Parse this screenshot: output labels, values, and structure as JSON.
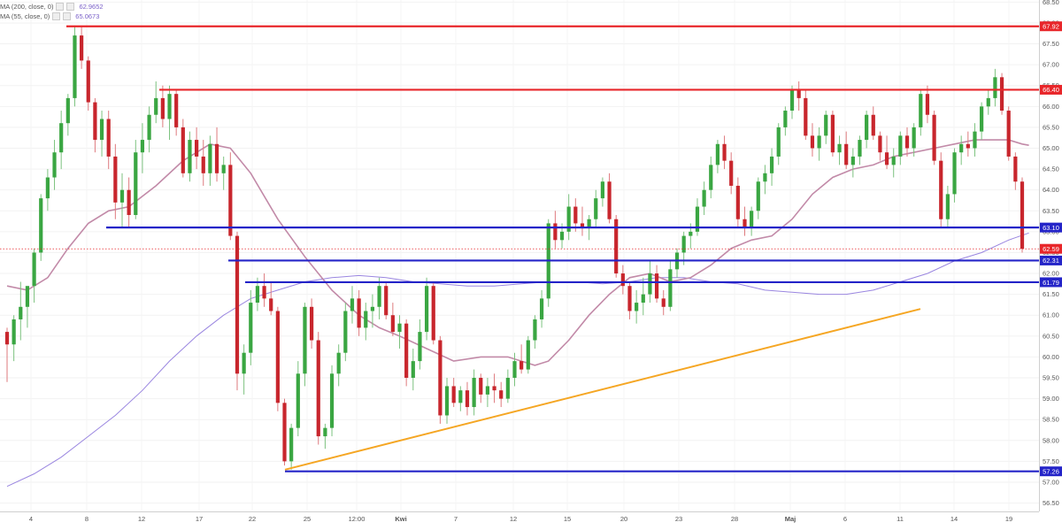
{
  "chart_data": {
    "type": "candlestick",
    "indicators": [
      {
        "label": "MA (200, close, 0)",
        "value": "62.9652",
        "color": "#9a86e0"
      },
      {
        "label": "MA (55, close, 0)",
        "value": "65.0673",
        "color": "#c28aa8"
      }
    ],
    "y_axis": {
      "min": 56.3,
      "max": 68.55,
      "ticks": [
        "56.50",
        "57.00",
        "57.50",
        "58.00",
        "58.50",
        "59.00",
        "59.50",
        "60.00",
        "60.50",
        "61.00",
        "61.50",
        "62.00",
        "62.50",
        "63.00",
        "63.50",
        "64.00",
        "64.50",
        "65.00",
        "65.50",
        "66.00",
        "66.50",
        "67.00",
        "67.50",
        "68.00",
        "68.50"
      ]
    },
    "x_axis": {
      "labels": [
        "4",
        "8",
        "12",
        "17",
        "22",
        "25",
        "12:00",
        "Kwi",
        "7",
        "12",
        "15",
        "20",
        "23",
        "28",
        "Maj",
        "6",
        "11",
        "14",
        "19"
      ]
    },
    "price_levels": [
      {
        "label": "67.92",
        "value": 67.92,
        "color": "#e8262a",
        "kind": "resistance"
      },
      {
        "label": "66.40",
        "value": 66.4,
        "color": "#e8262a",
        "kind": "resistance"
      },
      {
        "label": "63.10",
        "value": 63.1,
        "color": "#2424c8",
        "kind": "support"
      },
      {
        "label": "62.31",
        "value": 62.31,
        "color": "#2424c8",
        "kind": "support"
      },
      {
        "label": "61.79",
        "value": 61.79,
        "color": "#2424c8",
        "kind": "support"
      },
      {
        "label": "57.26",
        "value": 57.26,
        "color": "#2424c8",
        "kind": "support"
      }
    ],
    "last_price": {
      "label": "62.59",
      "value": 62.59,
      "color": "#e8262a"
    },
    "trendline": {
      "start": 57.3,
      "end": 61.15,
      "color": "#f5a623"
    },
    "candles": [
      [
        60.6,
        60.7,
        59.4,
        60.3
      ],
      [
        60.3,
        61.0,
        59.9,
        60.9
      ],
      [
        60.9,
        61.8,
        60.4,
        61.2
      ],
      [
        61.2,
        61.6,
        60.7,
        61.7
      ],
      [
        61.7,
        62.6,
        61.3,
        62.5
      ],
      [
        62.5,
        63.9,
        62.3,
        63.8
      ],
      [
        63.8,
        64.5,
        63.5,
        64.3
      ],
      [
        64.3,
        65.2,
        64.0,
        64.9
      ],
      [
        64.9,
        65.9,
        64.5,
        65.6
      ],
      [
        65.6,
        66.3,
        65.3,
        66.2
      ],
      [
        66.2,
        67.9,
        66.0,
        67.7
      ],
      [
        67.7,
        67.9,
        66.9,
        67.1
      ],
      [
        67.1,
        67.2,
        65.9,
        66.1
      ],
      [
        66.1,
        66.2,
        64.9,
        65.2
      ],
      [
        65.2,
        65.9,
        64.8,
        65.7
      ],
      [
        65.7,
        65.9,
        64.5,
        64.8
      ],
      [
        64.8,
        65.1,
        63.3,
        63.7
      ],
      [
        63.7,
        64.4,
        63.1,
        64.0
      ],
      [
        64.0,
        64.3,
        63.1,
        63.4
      ],
      [
        63.4,
        65.2,
        63.3,
        64.9
      ],
      [
        64.9,
        65.6,
        64.4,
        65.2
      ],
      [
        65.2,
        66.0,
        64.9,
        65.8
      ],
      [
        65.8,
        66.6,
        65.6,
        66.2
      ],
      [
        66.2,
        66.5,
        65.5,
        65.7
      ],
      [
        65.7,
        66.5,
        65.2,
        66.3
      ],
      [
        66.3,
        66.4,
        65.3,
        65.5
      ],
      [
        65.5,
        65.7,
        64.3,
        64.4
      ],
      [
        64.4,
        65.4,
        64.2,
        65.2
      ],
      [
        65.2,
        65.5,
        64.5,
        64.8
      ],
      [
        64.8,
        65.2,
        64.1,
        64.4
      ],
      [
        64.4,
        65.3,
        64.1,
        65.1
      ],
      [
        65.1,
        65.5,
        64.2,
        64.4
      ],
      [
        64.4,
        64.8,
        64.0,
        64.6
      ],
      [
        64.6,
        64.9,
        62.8,
        62.9
      ],
      [
        62.9,
        63.0,
        59.2,
        59.6
      ],
      [
        59.6,
        60.3,
        59.1,
        60.1
      ],
      [
        60.1,
        61.6,
        59.8,
        61.3
      ],
      [
        61.3,
        61.9,
        61.1,
        61.7
      ],
      [
        61.7,
        62.0,
        61.2,
        61.4
      ],
      [
        61.4,
        61.8,
        61.0,
        61.1
      ],
      [
        61.1,
        61.2,
        58.7,
        58.9
      ],
      [
        58.9,
        59.0,
        57.4,
        57.5
      ],
      [
        57.5,
        58.4,
        57.3,
        58.3
      ],
      [
        58.3,
        59.9,
        58.1,
        59.6
      ],
      [
        59.6,
        61.3,
        59.3,
        61.2
      ],
      [
        61.2,
        61.4,
        60.2,
        60.4
      ],
      [
        60.4,
        60.6,
        57.9,
        58.1
      ],
      [
        58.1,
        58.4,
        57.8,
        58.3
      ],
      [
        58.3,
        59.8,
        58.1,
        59.6
      ],
      [
        59.6,
        60.3,
        59.3,
        60.1
      ],
      [
        60.1,
        61.3,
        59.9,
        61.1
      ],
      [
        61.1,
        61.7,
        60.8,
        61.4
      ],
      [
        61.4,
        61.6,
        60.5,
        60.7
      ],
      [
        60.7,
        61.3,
        60.4,
        61.1
      ],
      [
        61.1,
        61.5,
        60.7,
        61.2
      ],
      [
        61.2,
        61.9,
        60.9,
        61.7
      ],
      [
        61.7,
        61.8,
        60.9,
        61.0
      ],
      [
        61.0,
        61.3,
        60.5,
        60.6
      ],
      [
        60.6,
        61.0,
        60.2,
        60.8
      ],
      [
        60.8,
        60.9,
        59.3,
        59.5
      ],
      [
        59.5,
        60.2,
        59.2,
        59.9
      ],
      [
        59.9,
        60.9,
        59.7,
        60.6
      ],
      [
        60.6,
        61.9,
        60.4,
        61.7
      ],
      [
        61.7,
        61.8,
        60.3,
        60.4
      ],
      [
        60.4,
        60.5,
        58.4,
        58.6
      ],
      [
        58.6,
        59.5,
        58.4,
        59.3
      ],
      [
        59.3,
        59.5,
        58.8,
        58.9
      ],
      [
        58.9,
        59.3,
        58.7,
        59.2
      ],
      [
        59.2,
        59.4,
        58.6,
        58.8
      ],
      [
        58.8,
        59.7,
        58.6,
        59.5
      ],
      [
        59.5,
        59.6,
        58.9,
        59.1
      ],
      [
        59.1,
        59.5,
        58.8,
        59.3
      ],
      [
        59.3,
        59.6,
        58.9,
        59.2
      ],
      [
        59.2,
        59.4,
        58.8,
        59.0
      ],
      [
        59.0,
        59.7,
        58.9,
        59.5
      ],
      [
        59.5,
        60.1,
        59.3,
        59.9
      ],
      [
        59.9,
        60.3,
        59.6,
        59.7
      ],
      [
        59.7,
        60.5,
        59.6,
        60.4
      ],
      [
        60.4,
        61.0,
        60.2,
        60.9
      ],
      [
        60.9,
        61.6,
        60.7,
        61.4
      ],
      [
        61.4,
        63.3,
        61.2,
        63.2
      ],
      [
        63.2,
        63.5,
        62.6,
        62.8
      ],
      [
        62.8,
        63.2,
        62.6,
        63.0
      ],
      [
        63.0,
        63.9,
        62.8,
        63.6
      ],
      [
        63.6,
        63.8,
        63.0,
        63.2
      ],
      [
        63.2,
        63.6,
        62.9,
        63.1
      ],
      [
        63.1,
        63.4,
        62.8,
        63.3
      ],
      [
        63.3,
        64.0,
        63.1,
        63.8
      ],
      [
        63.8,
        64.3,
        63.6,
        64.2
      ],
      [
        64.2,
        64.4,
        63.2,
        63.3
      ],
      [
        63.3,
        63.4,
        61.9,
        62.0
      ],
      [
        62.0,
        62.2,
        61.5,
        61.7
      ],
      [
        61.7,
        61.8,
        60.9,
        61.1
      ],
      [
        61.1,
        61.6,
        60.8,
        61.3
      ],
      [
        61.3,
        61.9,
        61.0,
        61.5
      ],
      [
        61.5,
        62.3,
        61.3,
        62.0
      ],
      [
        62.0,
        62.2,
        61.3,
        61.4
      ],
      [
        61.4,
        61.6,
        61.0,
        61.2
      ],
      [
        61.2,
        62.3,
        61.1,
        62.1
      ],
      [
        62.1,
        62.6,
        61.9,
        62.5
      ],
      [
        62.5,
        63.0,
        62.2,
        62.9
      ],
      [
        62.9,
        63.2,
        62.6,
        63.0
      ],
      [
        63.0,
        63.8,
        62.9,
        63.6
      ],
      [
        63.6,
        64.2,
        63.4,
        64.0
      ],
      [
        64.0,
        64.8,
        63.8,
        64.6
      ],
      [
        64.6,
        65.2,
        64.4,
        65.1
      ],
      [
        65.1,
        65.3,
        64.5,
        64.7
      ],
      [
        64.7,
        64.9,
        63.9,
        64.1
      ],
      [
        64.1,
        64.3,
        63.1,
        63.3
      ],
      [
        63.3,
        63.6,
        62.9,
        63.1
      ],
      [
        63.1,
        63.6,
        62.9,
        63.5
      ],
      [
        63.5,
        64.3,
        63.3,
        64.2
      ],
      [
        64.2,
        64.6,
        63.9,
        64.4
      ],
      [
        64.4,
        65.0,
        64.1,
        64.8
      ],
      [
        64.8,
        65.6,
        64.6,
        65.5
      ],
      [
        65.5,
        66.0,
        65.3,
        65.9
      ],
      [
        65.9,
        66.5,
        65.7,
        66.4
      ],
      [
        66.4,
        66.6,
        65.9,
        66.2
      ],
      [
        66.2,
        66.4,
        65.2,
        65.3
      ],
      [
        65.3,
        65.6,
        64.8,
        65.0
      ],
      [
        65.0,
        65.5,
        64.7,
        65.3
      ],
      [
        65.3,
        65.9,
        65.1,
        65.8
      ],
      [
        65.8,
        65.9,
        64.8,
        64.9
      ],
      [
        64.9,
        65.3,
        64.6,
        65.1
      ],
      [
        65.1,
        65.4,
        64.5,
        64.6
      ],
      [
        64.6,
        65.0,
        64.3,
        64.8
      ],
      [
        64.8,
        65.3,
        64.6,
        65.2
      ],
      [
        65.2,
        65.9,
        65.0,
        65.8
      ],
      [
        65.8,
        66.0,
        65.2,
        65.3
      ],
      [
        65.3,
        65.4,
        64.7,
        64.9
      ],
      [
        64.9,
        65.3,
        64.5,
        64.6
      ],
      [
        64.6,
        65.0,
        64.3,
        64.8
      ],
      [
        64.8,
        65.4,
        64.6,
        65.3
      ],
      [
        65.3,
        65.5,
        64.8,
        65.0
      ],
      [
        65.0,
        65.6,
        64.8,
        65.5
      ],
      [
        65.5,
        66.4,
        65.3,
        66.3
      ],
      [
        66.3,
        66.5,
        65.6,
        65.8
      ],
      [
        65.8,
        65.9,
        64.6,
        64.7
      ],
      [
        64.7,
        64.9,
        63.1,
        63.3
      ],
      [
        63.3,
        64.1,
        63.1,
        63.9
      ],
      [
        63.9,
        65.0,
        63.7,
        64.9
      ],
      [
        64.9,
        65.3,
        64.6,
        65.1
      ],
      [
        65.1,
        65.4,
        64.8,
        65.0
      ],
      [
        65.0,
        65.6,
        64.8,
        65.4
      ],
      [
        65.4,
        66.1,
        65.2,
        66.0
      ],
      [
        66.0,
        66.4,
        65.8,
        66.2
      ],
      [
        66.2,
        66.9,
        66.0,
        66.7
      ],
      [
        66.7,
        66.8,
        65.8,
        65.9
      ],
      [
        65.9,
        66.0,
        64.7,
        64.8
      ],
      [
        64.8,
        64.9,
        64.0,
        64.2
      ],
      [
        64.2,
        64.3,
        62.5,
        62.59
      ]
    ],
    "ma55": [
      [
        0,
        61.7
      ],
      [
        3,
        61.6
      ],
      [
        6,
        61.9
      ],
      [
        9,
        62.6
      ],
      [
        12,
        63.2
      ],
      [
        15,
        63.5
      ],
      [
        18,
        63.6
      ],
      [
        22,
        64.1
      ],
      [
        26,
        64.7
      ],
      [
        30,
        65.1
      ],
      [
        33,
        65.0
      ],
      [
        36,
        64.4
      ],
      [
        40,
        63.3
      ],
      [
        44,
        62.4
      ],
      [
        48,
        61.6
      ],
      [
        52,
        61.0
      ],
      [
        55,
        60.7
      ],
      [
        58,
        60.5
      ],
      [
        62,
        60.2
      ],
      [
        66,
        59.9
      ],
      [
        70,
        60.0
      ],
      [
        74,
        60.0
      ],
      [
        78,
        59.8
      ],
      [
        80,
        59.9
      ],
      [
        83,
        60.4
      ],
      [
        86,
        61.0
      ],
      [
        89,
        61.5
      ],
      [
        92,
        61.9
      ],
      [
        95,
        62.0
      ],
      [
        98,
        61.8
      ],
      [
        101,
        61.9
      ],
      [
        104,
        62.2
      ],
      [
        107,
        62.6
      ],
      [
        110,
        62.8
      ],
      [
        113,
        62.9
      ],
      [
        116,
        63.3
      ],
      [
        119,
        63.9
      ],
      [
        122,
        64.3
      ],
      [
        125,
        64.5
      ],
      [
        128,
        64.6
      ],
      [
        131,
        64.8
      ],
      [
        134,
        64.9
      ],
      [
        137,
        65.0
      ],
      [
        140,
        65.1
      ],
      [
        143,
        65.2
      ],
      [
        146,
        65.2
      ],
      [
        148,
        65.2
      ],
      [
        150,
        65.1
      ],
      [
        151,
        65.07
      ]
    ],
    "ma200": [
      [
        0,
        56.9
      ],
      [
        4,
        57.2
      ],
      [
        8,
        57.6
      ],
      [
        12,
        58.1
      ],
      [
        16,
        58.6
      ],
      [
        20,
        59.2
      ],
      [
        24,
        59.9
      ],
      [
        28,
        60.5
      ],
      [
        32,
        61.0
      ],
      [
        36,
        61.4
      ],
      [
        40,
        61.6
      ],
      [
        44,
        61.8
      ],
      [
        48,
        61.9
      ],
      [
        52,
        61.95
      ],
      [
        56,
        61.9
      ],
      [
        60,
        61.8
      ],
      [
        64,
        61.75
      ],
      [
        68,
        61.7
      ],
      [
        72,
        61.7
      ],
      [
        76,
        61.75
      ],
      [
        80,
        61.8
      ],
      [
        84,
        61.8
      ],
      [
        88,
        61.75
      ],
      [
        92,
        61.8
      ],
      [
        96,
        61.9
      ],
      [
        100,
        61.9
      ],
      [
        104,
        61.8
      ],
      [
        108,
        61.75
      ],
      [
        112,
        61.6
      ],
      [
        116,
        61.55
      ],
      [
        120,
        61.5
      ],
      [
        124,
        61.5
      ],
      [
        128,
        61.6
      ],
      [
        132,
        61.8
      ],
      [
        136,
        62.0
      ],
      [
        140,
        62.3
      ],
      [
        144,
        62.5
      ],
      [
        148,
        62.8
      ],
      [
        151,
        62.97
      ]
    ]
  }
}
